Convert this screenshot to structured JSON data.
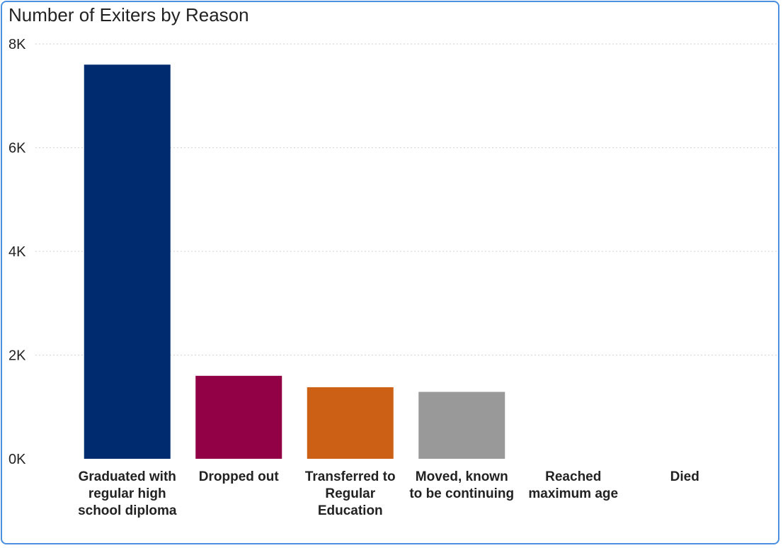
{
  "chart_data": {
    "type": "bar",
    "title": "Number of Exiters by Reason",
    "categories": [
      "Graduated with regular high school diploma",
      "Dropped out",
      "Transferred to Regular Education",
      "Moved, known to be continuing",
      "Reached maximum age",
      "Died"
    ],
    "values": [
      7600,
      1600,
      1380,
      1290,
      0,
      0
    ],
    "colors": [
      "#002b6e",
      "#920045",
      "#cc6116",
      "#999999",
      "#cccccc",
      "#cccccc"
    ],
    "ylim": [
      0,
      8000
    ],
    "yticks": [
      0,
      2000,
      4000,
      6000,
      8000
    ],
    "ytick_labels": [
      "0K",
      "2K",
      "4K",
      "6K",
      "8K"
    ],
    "grid": true,
    "gridline_color": "#d9d9d9",
    "xlabel": "",
    "ylabel": ""
  }
}
